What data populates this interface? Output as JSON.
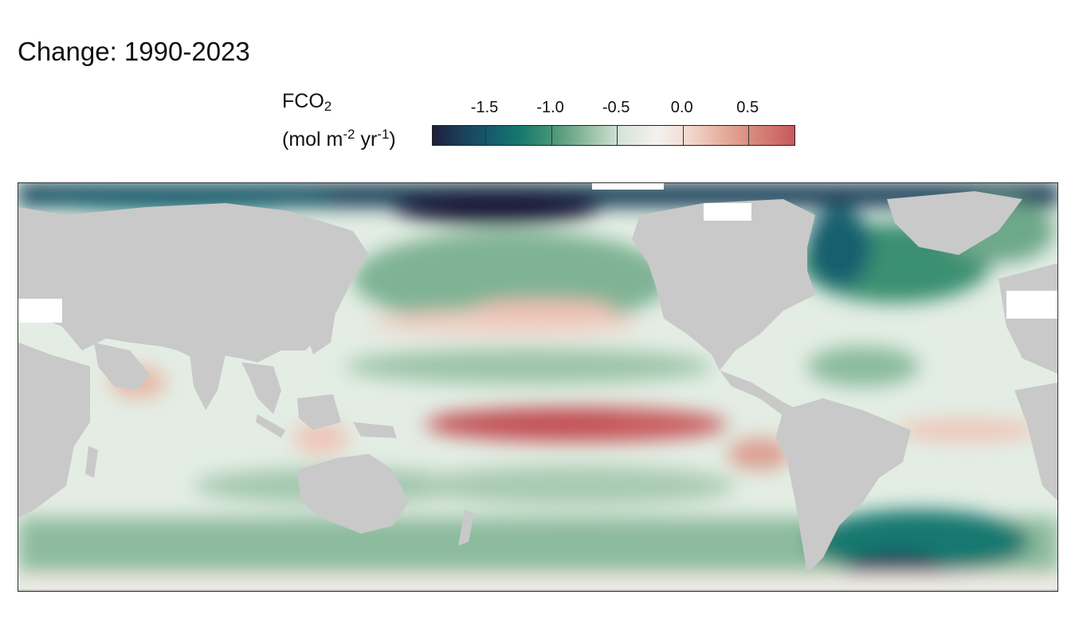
{
  "title": "Change:  1990-2023",
  "legend": {
    "variable": "FCO",
    "variable_sub": "2",
    "units_open": "(mol m",
    "units_exp1": "-2",
    "units_mid": " yr",
    "units_exp2": "-1",
    "units_close": ")",
    "ticks": [
      "-1.5",
      "-1.0",
      "-0.5",
      "0.0",
      "0.5"
    ],
    "tick_values": [
      -1.5,
      -1.0,
      -0.5,
      0.0,
      0.5
    ],
    "range": [
      -1.9,
      0.85
    ],
    "palette": [
      "#1d1f3a",
      "#145f6e",
      "#3a8f72",
      "#a3c7ad",
      "#f4f2ee",
      "#e9b7a7",
      "#c8595c"
    ]
  },
  "map": {
    "land_color": "#c9c9c9",
    "ocean_base_color": "#e6efe6",
    "frame_color": "#333333"
  }
}
